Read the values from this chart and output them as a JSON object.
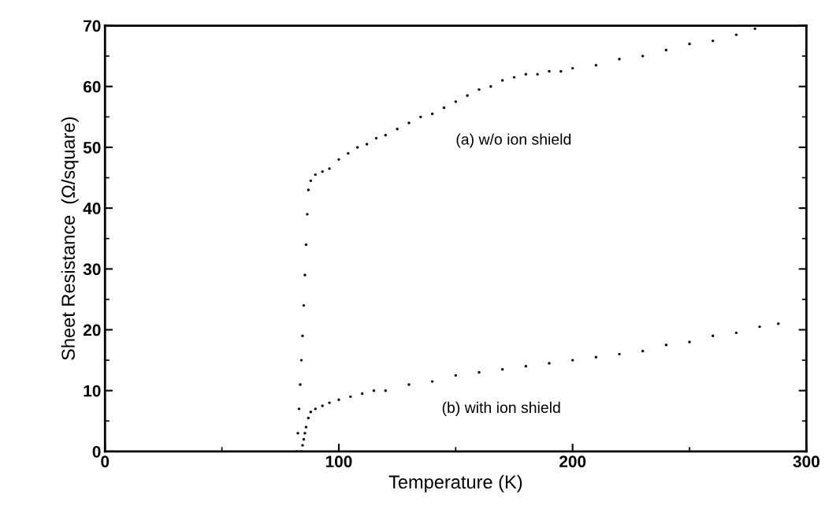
{
  "chart_data": {
    "type": "scatter",
    "xlabel": "Temperature (K)",
    "ylabel": "Sheet Resistance  (Ω/square)",
    "xlim": [
      0,
      300
    ],
    "ylim": [
      0,
      70
    ],
    "xticks": [
      0,
      100,
      200,
      300
    ],
    "yticks": [
      0,
      10,
      20,
      30,
      40,
      50,
      60,
      70
    ],
    "grid": false,
    "marker": "circle",
    "series": [
      {
        "color": "#000000",
        "x": [
          82,
          82.5,
          83,
          83.5,
          84,
          84.5,
          85,
          85.5,
          86,
          86.5,
          87,
          88,
          90,
          93,
          96,
          100,
          104,
          108,
          112,
          116,
          120,
          125,
          130,
          135,
          140,
          145,
          150,
          155,
          160,
          165,
          170,
          175,
          180,
          185,
          190,
          195,
          200,
          210,
          220,
          230,
          240,
          250,
          260,
          270,
          278
        ],
        "values": [
          0,
          3,
          7,
          11,
          15,
          19,
          24,
          29,
          34,
          39,
          43,
          44.5,
          45.5,
          46,
          46.5,
          48,
          49,
          50,
          50.5,
          51.5,
          52,
          53,
          54,
          55,
          55.5,
          56.5,
          57.5,
          58.5,
          59.5,
          60,
          61,
          61.5,
          62,
          62,
          62.5,
          62.5,
          63,
          63.5,
          64.5,
          65,
          66,
          67,
          67.5,
          68.5,
          69.5
        ]
      },
      {
        "color": "#000000",
        "x": [
          84,
          84.5,
          85,
          85.5,
          86,
          87,
          88,
          90,
          93,
          96,
          100,
          105,
          110,
          115,
          120,
          130,
          140,
          150,
          160,
          170,
          180,
          190,
          200,
          210,
          220,
          230,
          240,
          250,
          260,
          270,
          280,
          288
        ],
        "values": [
          0,
          1,
          2,
          3,
          4,
          5.5,
          6.5,
          7,
          7.5,
          8,
          8.5,
          9,
          9.5,
          10,
          10,
          11,
          11.5,
          12.5,
          13,
          13.5,
          14,
          14.5,
          15,
          15.5,
          16,
          16.5,
          17.5,
          18,
          19,
          19.5,
          20.5,
          21
        ]
      }
    ],
    "annotations": [
      "(a) w/o ion shield",
      "(b) with ion shield"
    ]
  }
}
